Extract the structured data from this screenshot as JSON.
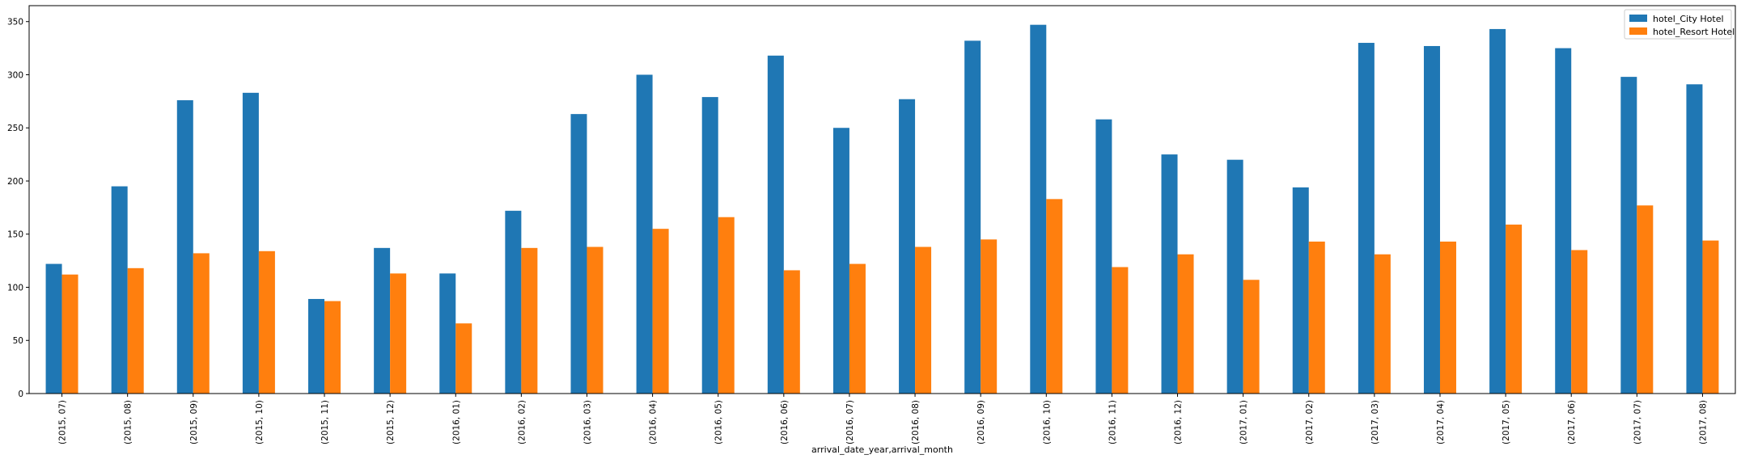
{
  "chart_data": {
    "type": "bar",
    "title": "",
    "xlabel": "arrival_date_year,arrival_month",
    "ylabel": "",
    "ylim": [
      0,
      365
    ],
    "yticks": [
      0,
      50,
      100,
      150,
      200,
      250,
      300,
      350
    ],
    "grid": false,
    "legend_position": "top-right",
    "categories": [
      "(2015, 07)",
      "(2015, 08)",
      "(2015, 09)",
      "(2015, 10)",
      "(2015, 11)",
      "(2015, 12)",
      "(2016, 01)",
      "(2016, 02)",
      "(2016, 03)",
      "(2016, 04)",
      "(2016, 05)",
      "(2016, 06)",
      "(2016, 07)",
      "(2016, 08)",
      "(2016, 09)",
      "(2016, 10)",
      "(2016, 11)",
      "(2016, 12)",
      "(2017, 01)",
      "(2017, 02)",
      "(2017, 03)",
      "(2017, 04)",
      "(2017, 05)",
      "(2017, 06)",
      "(2017, 07)",
      "(2017, 08)"
    ],
    "series": [
      {
        "name": "hotel_City Hotel",
        "color": "#1f77b4",
        "values": [
          122,
          195,
          276,
          283,
          89,
          137,
          113,
          172,
          263,
          300,
          279,
          318,
          250,
          277,
          332,
          347,
          258,
          225,
          220,
          194,
          330,
          327,
          343,
          325,
          298,
          291
        ]
      },
      {
        "name": "hotel_Resort Hotel",
        "color": "#ff7f0e",
        "values": [
          112,
          118,
          132,
          134,
          87,
          113,
          66,
          137,
          138,
          155,
          166,
          116,
          122,
          138,
          145,
          183,
          119,
          131,
          107,
          143,
          131,
          143,
          159,
          135,
          177,
          144
        ]
      }
    ]
  }
}
